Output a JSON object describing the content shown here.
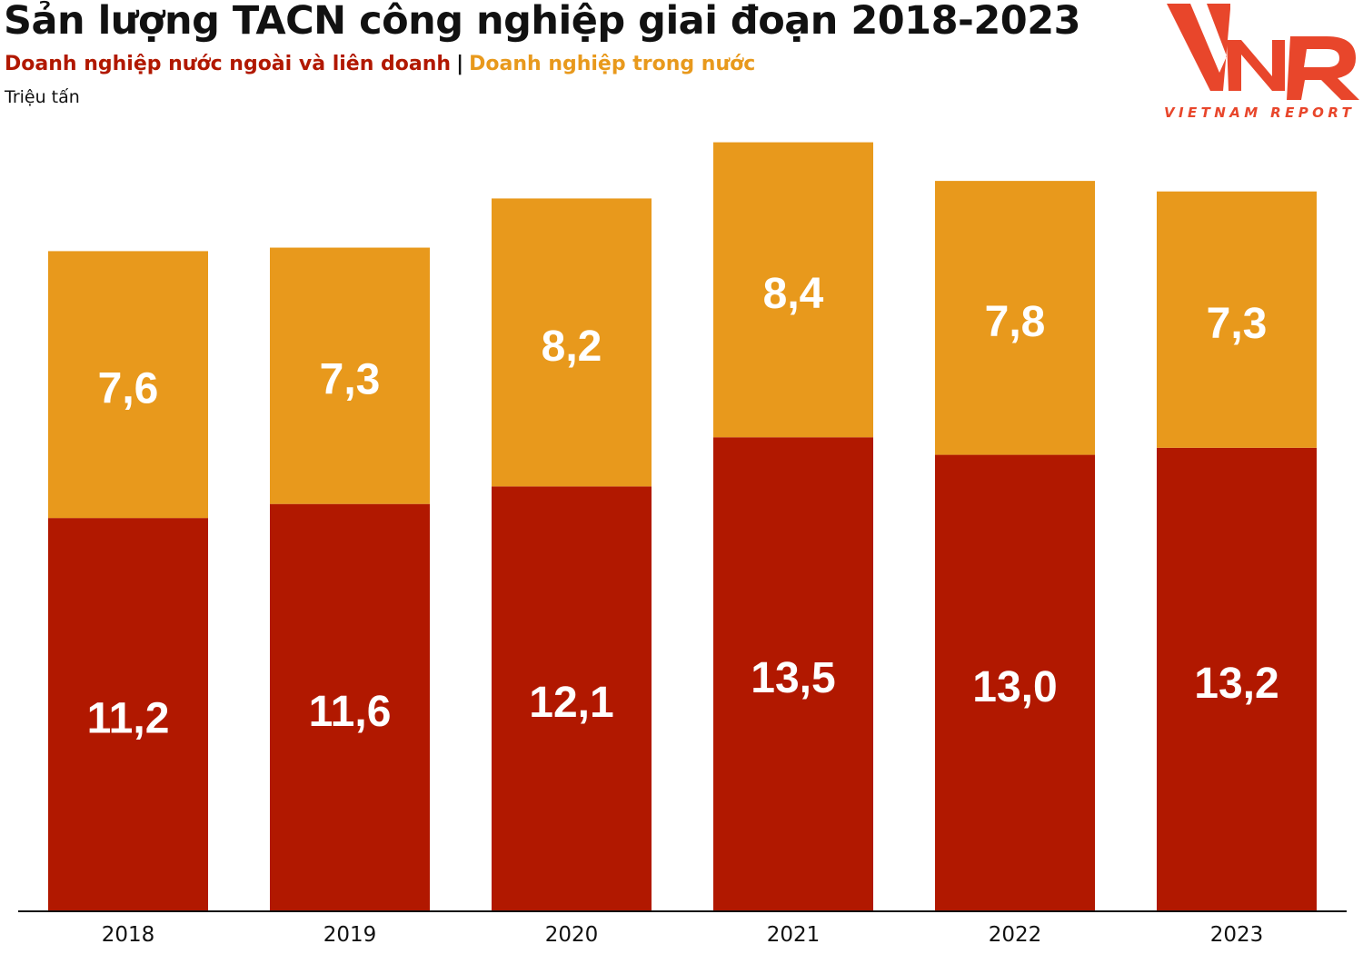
{
  "header": {
    "title": "Sản lượng TACN công nghiệp giai đoạn 2018-2023",
    "legend_sep": "|",
    "unit": "Triệu tấn"
  },
  "logo": {
    "mark": "VNR",
    "text": "VIETNAM REPORT",
    "color": "#e8462b"
  },
  "chart_data": {
    "type": "bar",
    "stacked": true,
    "categories": [
      "2018",
      "2019",
      "2020",
      "2021",
      "2022",
      "2023"
    ],
    "series": [
      {
        "name": "Doanh nghiệp nước ngoài và liên doanh",
        "values": [
          11.2,
          11.6,
          12.1,
          13.5,
          13.0,
          13.2
        ],
        "labels": [
          "11,2",
          "11,6",
          "12,1",
          "13,5",
          "13,0",
          "13,2"
        ],
        "color": "#b11800"
      },
      {
        "name": "Doanh nghiệp trong nước",
        "values": [
          7.6,
          7.3,
          8.2,
          8.4,
          7.8,
          7.3
        ],
        "labels": [
          "7,6",
          "7,3",
          "8,2",
          "8,4",
          "7,8",
          "7,3"
        ],
        "color": "#e8991c"
      }
    ],
    "title": "Sản lượng TACN công nghiệp giai đoạn 2018-2023",
    "ylabel": "Triệu tấn",
    "xlabel": "",
    "ylim": [
      0,
      22.2
    ],
    "grid": false,
    "legend": "top-left"
  }
}
